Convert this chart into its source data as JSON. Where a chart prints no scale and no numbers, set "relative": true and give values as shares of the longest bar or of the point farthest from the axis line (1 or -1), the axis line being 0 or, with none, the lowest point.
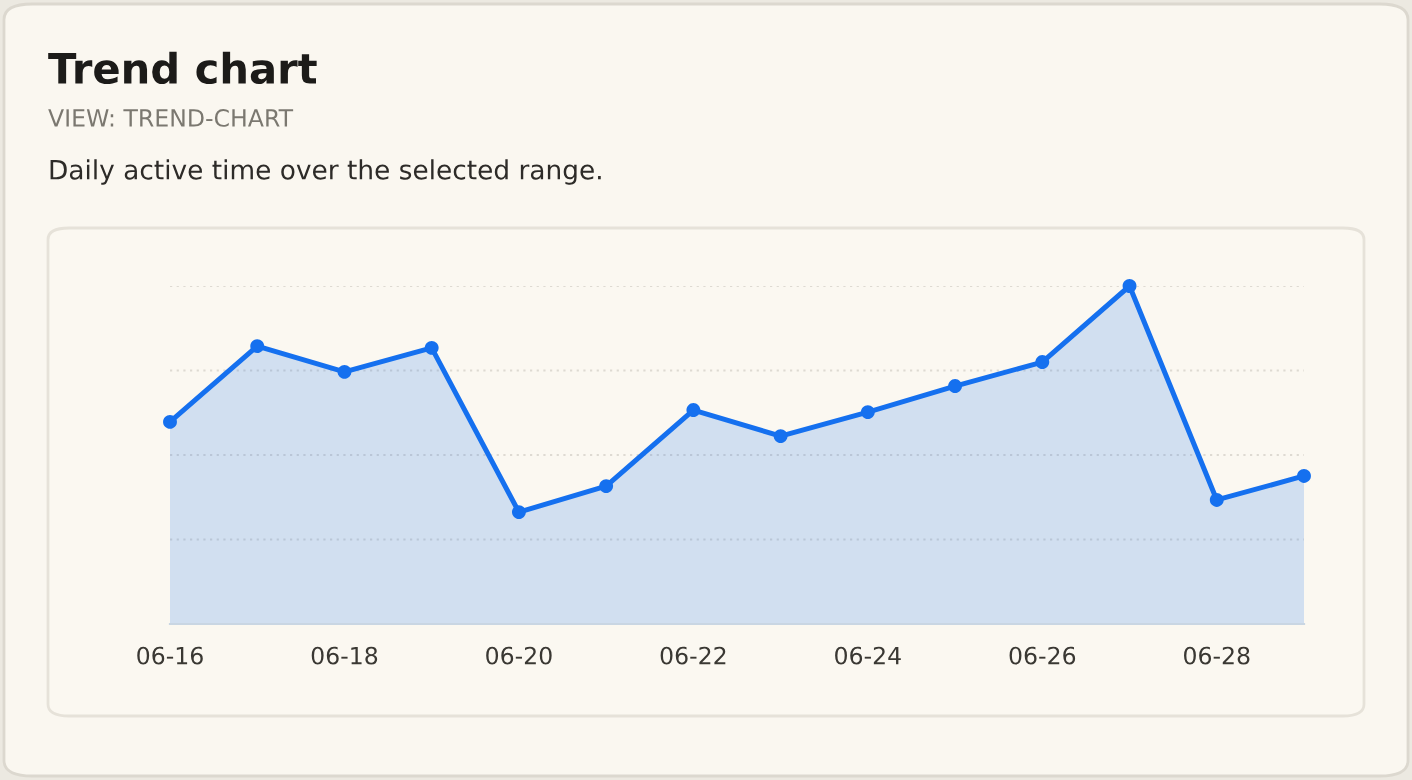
{
  "chart_data": {
    "type": "area",
    "title": "Trend chart",
    "subtitle": "VIEW: TREND-CHART",
    "annotations": [
      "Daily active time over the selected range."
    ],
    "relative": true,
    "categories": [
      "06-16",
      null,
      "06-18",
      null,
      "06-20",
      null,
      "06-22",
      null,
      "06-24",
      null,
      "06-26",
      null,
      "06-28",
      null
    ],
    "series": [
      {
        "color": "#1570ef",
        "values": [
          0.598,
          0.822,
          0.746,
          0.817,
          0.331,
          0.408,
          0.633,
          0.556,
          0.627,
          0.704,
          0.775,
          1,
          0.367,
          0.438
        ]
      }
    ],
    "marker": "circle",
    "line_style": "solid",
    "grid": "y",
    "legend": false
  }
}
